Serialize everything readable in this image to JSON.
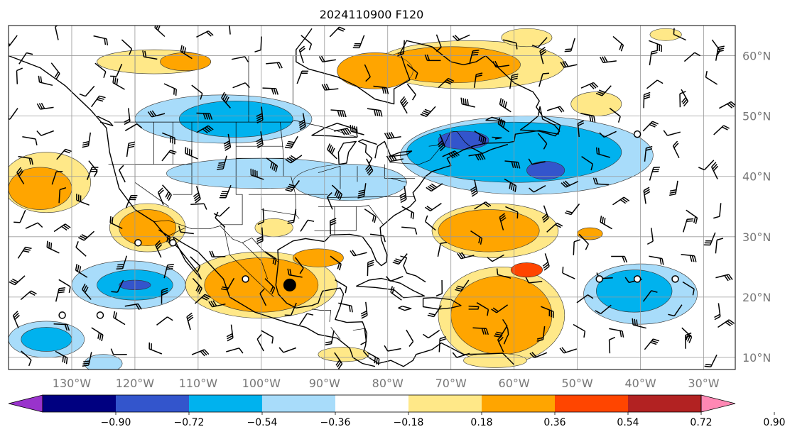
{
  "chart_data": {
    "type": "heatmap",
    "title": "2024110900 F120",
    "xlabel": "",
    "ylabel": "",
    "xlim": [
      -140,
      -25
    ],
    "ylim": [
      8,
      65
    ],
    "grid": true,
    "lon_ticks": [
      {
        "value": -130,
        "label": "130°W"
      },
      {
        "value": -120,
        "label": "120°W"
      },
      {
        "value": -110,
        "label": "110°W"
      },
      {
        "value": -100,
        "label": "100°W"
      },
      {
        "value": -90,
        "label": "90°W"
      },
      {
        "value": -80,
        "label": "80°W"
      },
      {
        "value": -70,
        "label": "70°W"
      },
      {
        "value": -60,
        "label": "60°W"
      },
      {
        "value": -50,
        "label": "50°W"
      },
      {
        "value": -40,
        "label": "40°W"
      },
      {
        "value": -30,
        "label": "30°W"
      }
    ],
    "lat_ticks": [
      {
        "value": 10,
        "label": "10°N"
      },
      {
        "value": 20,
        "label": "20°N"
      },
      {
        "value": 30,
        "label": "30°N"
      },
      {
        "value": 40,
        "label": "40°N"
      },
      {
        "value": 50,
        "label": "50°N"
      },
      {
        "value": 60,
        "label": "60°N"
      }
    ],
    "colorbar": {
      "labels": [
        "−0.90",
        "−0.72",
        "−0.54",
        "−0.36",
        "−0.18",
        "0.18",
        "0.36",
        "0.54",
        "0.72",
        "0.90"
      ],
      "colors": [
        "#9933cc",
        "#000080",
        "#3355cc",
        "#00b2ee",
        "#a8dcfa",
        "#ffffff",
        "#ffe888",
        "#ffa500",
        "#ff4500",
        "#b22222",
        "#ff88b4"
      ],
      "extend": "both"
    },
    "anomaly_blobs": [
      {
        "lon": -67,
        "lat": 58.5,
        "rlon": 15,
        "rlat": 4,
        "value": 0.25
      },
      {
        "lon": -70,
        "lat": 58.5,
        "rlon": 11,
        "rlat": 3,
        "value": 0.45
      },
      {
        "lon": -82,
        "lat": 57.5,
        "rlon": 6,
        "rlat": 3,
        "value": 0.4
      },
      {
        "lon": -117,
        "lat": 59,
        "rlon": 9,
        "rlat": 2,
        "value": 0.25
      },
      {
        "lon": -112,
        "lat": 59,
        "rlon": 4,
        "rlat": 1.5,
        "value": 0.4
      },
      {
        "lon": -58,
        "lat": 63,
        "rlon": 4,
        "rlat": 1.5,
        "value": 0.25
      },
      {
        "lon": -47,
        "lat": 52,
        "rlon": 4,
        "rlat": 2,
        "value": 0.25
      },
      {
        "lon": -36,
        "lat": 63.5,
        "rlon": 2.5,
        "rlat": 1,
        "value": 0.25
      },
      {
        "lon": -106,
        "lat": 49.5,
        "rlon": 14,
        "rlat": 4,
        "value": -0.25
      },
      {
        "lon": -104,
        "lat": 49.5,
        "rlon": 9,
        "rlat": 3,
        "value": -0.42
      },
      {
        "lon": -100,
        "lat": 40.5,
        "rlon": 15,
        "rlat": 2.5,
        "value": -0.25
      },
      {
        "lon": -86,
        "lat": 39,
        "rlon": 9,
        "rlat": 3,
        "value": -0.25
      },
      {
        "lon": -58,
        "lat": 43.5,
        "rlon": 20,
        "rlat": 6.5,
        "value": -0.25
      },
      {
        "lon": -60,
        "lat": 44,
        "rlon": 17,
        "rlat": 5,
        "value": -0.42
      },
      {
        "lon": -68,
        "lat": 46,
        "rlon": 4,
        "rlat": 1.5,
        "value": -0.6
      },
      {
        "lon": -55,
        "lat": 41,
        "rlon": 3,
        "rlat": 1.5,
        "value": -0.6
      },
      {
        "lon": -63,
        "lat": 31,
        "rlon": 10,
        "rlat": 4.5,
        "value": 0.25
      },
      {
        "lon": -64,
        "lat": 31,
        "rlon": 8,
        "rlat": 3.5,
        "value": 0.45
      },
      {
        "lon": -48,
        "lat": 30.5,
        "rlon": 2,
        "rlat": 1,
        "value": 0.45
      },
      {
        "lon": -118,
        "lat": 31.5,
        "rlon": 6,
        "rlat": 4,
        "value": 0.25
      },
      {
        "lon": -118,
        "lat": 31.5,
        "rlon": 4.5,
        "rlat": 3,
        "value": 0.45
      },
      {
        "lon": -134,
        "lat": 39,
        "rlon": 7,
        "rlat": 5,
        "value": 0.25
      },
      {
        "lon": -135,
        "lat": 38,
        "rlon": 5,
        "rlat": 3.5,
        "value": 0.45
      },
      {
        "lon": -98,
        "lat": 31.5,
        "rlon": 3,
        "rlat": 1.5,
        "value": 0.25
      },
      {
        "lon": -100,
        "lat": 22,
        "rlon": 12,
        "rlat": 5.5,
        "value": 0.25
      },
      {
        "lon": -100,
        "lat": 22,
        "rlon": 9,
        "rlat": 4.5,
        "value": 0.45
      },
      {
        "lon": -91,
        "lat": 26.5,
        "rlon": 4,
        "rlat": 1.5,
        "value": 0.45
      },
      {
        "lon": -62,
        "lat": 17,
        "rlon": 10,
        "rlat": 8,
        "value": 0.25
      },
      {
        "lon": -62,
        "lat": 17,
        "rlon": 8,
        "rlat": 6.5,
        "value": 0.45
      },
      {
        "lon": -58,
        "lat": 24.5,
        "rlon": 2.5,
        "rlat": 1.2,
        "value": 0.62
      },
      {
        "lon": -121,
        "lat": 22,
        "rlon": 9,
        "rlat": 4,
        "value": -0.25
      },
      {
        "lon": -120,
        "lat": 22,
        "rlon": 6,
        "rlat": 2.5,
        "value": -0.42
      },
      {
        "lon": -120,
        "lat": 22,
        "rlon": 2.5,
        "rlat": 0.8,
        "value": -0.6
      },
      {
        "lon": -40,
        "lat": 20.5,
        "rlon": 9,
        "rlat": 5,
        "value": -0.25
      },
      {
        "lon": -41,
        "lat": 21,
        "rlon": 6,
        "rlat": 3.5,
        "value": -0.42
      },
      {
        "lon": -134,
        "lat": 13,
        "rlon": 6,
        "rlat": 3,
        "value": -0.25
      },
      {
        "lon": -134,
        "lat": 13,
        "rlon": 4,
        "rlat": 2,
        "value": -0.42
      },
      {
        "lon": -125,
        "lat": 9,
        "rlon": 3,
        "rlat": 1.5,
        "value": -0.25
      },
      {
        "lon": -87,
        "lat": 10.5,
        "rlon": 4,
        "rlat": 1.2,
        "value": 0.25
      },
      {
        "lon": -63,
        "lat": 9.5,
        "rlon": 5,
        "rlat": 1.2,
        "value": 0.25
      }
    ],
    "station_circles": [
      {
        "lon": -119.5,
        "lat": 29
      },
      {
        "lon": -114,
        "lat": 29
      },
      {
        "lon": -102.5,
        "lat": 23
      },
      {
        "lon": -131.5,
        "lat": 17
      },
      {
        "lon": -125.5,
        "lat": 17
      },
      {
        "lon": -46.5,
        "lat": 23
      },
      {
        "lon": -40.5,
        "lat": 23
      },
      {
        "lon": -34.5,
        "lat": 23
      },
      {
        "lon": -40.5,
        "lat": 47
      }
    ],
    "storm_marker": {
      "lon": -95.5,
      "lat": 22
    }
  }
}
